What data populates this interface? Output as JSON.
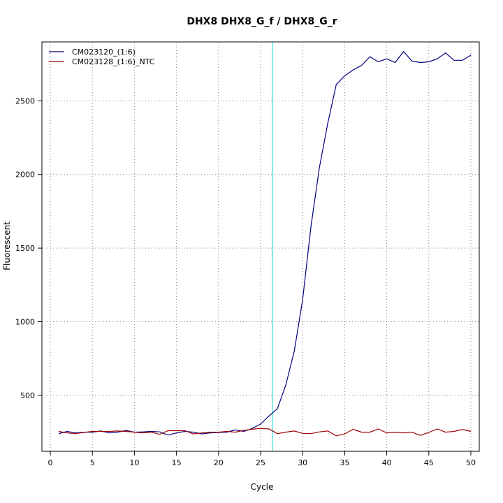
{
  "chart_data": {
    "type": "line",
    "title": "DHX8  DHX8_G_f / DHX8_G_r",
    "xlabel": "Cycle",
    "ylabel": "Fluorescent",
    "xlim": [
      -1,
      51
    ],
    "ylim": [
      120,
      2900
    ],
    "xticks": [
      0,
      5,
      10,
      15,
      20,
      25,
      30,
      35,
      40,
      45,
      50
    ],
    "yticks": [
      500,
      1000,
      1500,
      2000,
      2500
    ],
    "grid": true,
    "legend": "top-left",
    "threshold_cycle": 26.4,
    "series": [
      {
        "name": "CM023120_(1:6)",
        "color": "#000080",
        "x": [
          1,
          2,
          3,
          4,
          5,
          6,
          7,
          8,
          9,
          10,
          11,
          12,
          13,
          14,
          15,
          16,
          17,
          18,
          19,
          20,
          21,
          22,
          23,
          24,
          25,
          26,
          27,
          28,
          29,
          30,
          31,
          32,
          33,
          34,
          35,
          36,
          37,
          38,
          39,
          40,
          41,
          42,
          43,
          44,
          45,
          46,
          47,
          48,
          49,
          50
        ],
        "values": [
          240,
          255,
          245,
          250,
          250,
          258,
          245,
          250,
          262,
          250,
          252,
          255,
          252,
          230,
          245,
          255,
          250,
          238,
          245,
          248,
          250,
          265,
          255,
          275,
          305,
          360,
          410,
          570,
          800,
          1150,
          1650,
          2050,
          2350,
          2610,
          2670,
          2710,
          2740,
          2800,
          2765,
          2785,
          2760,
          2835,
          2770,
          2760,
          2765,
          2785,
          2825,
          2775,
          2775,
          2810
        ]
      },
      {
        "name": "CM023128_(1:6)_NTC",
        "color": "#a00000",
        "x": [
          1,
          2,
          3,
          4,
          5,
          6,
          7,
          8,
          9,
          10,
          11,
          12,
          13,
          14,
          15,
          16,
          17,
          18,
          19,
          20,
          21,
          22,
          23,
          24,
          25,
          26,
          27,
          28,
          29,
          30,
          31,
          32,
          33,
          34,
          35,
          36,
          37,
          38,
          39,
          40,
          41,
          42,
          43,
          44,
          45,
          46,
          47,
          48,
          49,
          50
        ],
        "values": [
          255,
          245,
          240,
          248,
          255,
          255,
          255,
          258,
          255,
          250,
          245,
          250,
          235,
          260,
          260,
          260,
          238,
          245,
          250,
          250,
          255,
          250,
          262,
          270,
          275,
          272,
          240,
          250,
          258,
          242,
          240,
          252,
          258,
          225,
          238,
          270,
          250,
          250,
          272,
          245,
          250,
          245,
          250,
          228,
          248,
          272,
          250,
          255,
          268,
          255
        ]
      }
    ]
  }
}
